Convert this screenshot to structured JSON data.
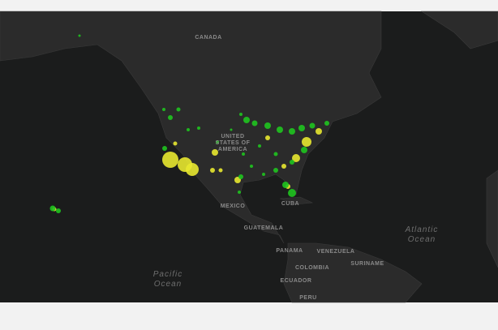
{
  "map": {
    "countries": [
      "CANADA",
      "MEXICO",
      "CUBA",
      "GUATEMALA",
      "PANAMA",
      "VENEZUELA",
      "SURINAME",
      "COLOMBIA",
      "ECUADOR",
      "PERU"
    ],
    "usa_label": [
      "UNITED",
      "STATES OF",
      "AMERICA"
    ],
    "oceans": [
      [
        "Pacific",
        "Ocean"
      ],
      [
        "Atlantic",
        "Ocean"
      ]
    ]
  }
}
